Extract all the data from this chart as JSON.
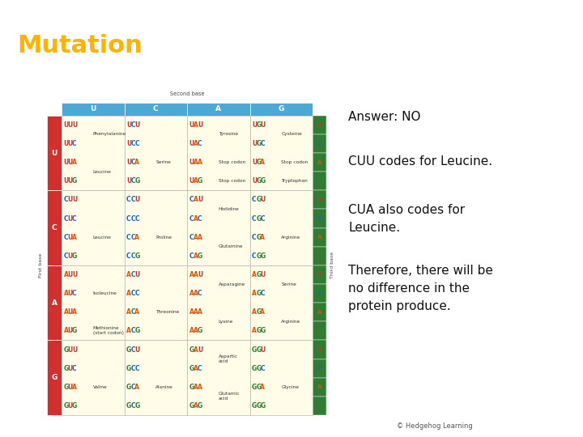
{
  "title": "Mutation",
  "title_color": "#FFB300",
  "header_bg": "#111111",
  "slide_bg": "#ffffff",
  "answer_text": "Answer: NO",
  "line1": "CUU codes for Leucine.",
  "line2": "CUA also codes for\nLeucine.",
  "line3": "Therefore, there will be\nno difference in the\nprotein produce.",
  "footer": "© Hedgehog Learning",
  "table_header_bg": "#4BAAD3",
  "cell_bg": "#FFFDE7",
  "row_label_bg": "#D32F2F",
  "third_base_bg": "#2E7D32",
  "codon_U_color": "#D32F2F",
  "codon_C_color": "#1565C0",
  "codon_A_color": "#E65100",
  "codon_G_color": "#2E7D32",
  "third_U_color": "#D32F2F",
  "third_C_color": "#1565C0",
  "third_A_color": "#E65100",
  "third_G_color": "#2E7D32",
  "text_color": "#111111",
  "font_size_title": 22,
  "font_size_answer": 11,
  "font_size_codon": 5.5,
  "font_size_amino": 4.2,
  "font_size_header": 6.5,
  "font_size_label": 4.5,
  "figsize": [
    7.2,
    5.4
  ],
  "dpi": 100
}
